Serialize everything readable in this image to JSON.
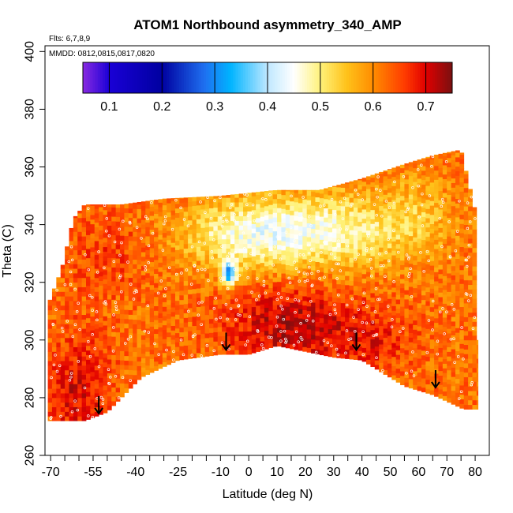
{
  "chart_data": {
    "type": "heatmap",
    "title": "ATOM1 Northbound asymmetry_340_AMP",
    "annotations": {
      "flights": "Flts: 6,7,8,9",
      "dates": "MMDD: 0812,0815,0817,0820"
    },
    "xlabel": "Latitude (deg N)",
    "ylabel": "Theta (C)",
    "xlim": [
      -72,
      85
    ],
    "ylim": [
      260,
      402
    ],
    "x_ticks": [
      -70,
      -55,
      -40,
      -25,
      -10,
      0,
      10,
      20,
      30,
      40,
      50,
      60,
      70,
      80
    ],
    "x_tick_labels": [
      "-70",
      "-55",
      "-40",
      "-25",
      "-10",
      "0",
      "10",
      "20",
      "30",
      "40",
      "50",
      "60",
      "70",
      "80"
    ],
    "x_minor_ticks": [
      -65,
      -60,
      -50,
      -45,
      -35,
      -30,
      -20,
      -15,
      -5,
      5,
      15,
      25,
      35,
      45,
      55,
      65,
      75
    ],
    "y_ticks": [
      260,
      280,
      300,
      320,
      340,
      360,
      380,
      400
    ],
    "y_tick_labels": [
      "260",
      "280",
      "300",
      "320",
      "340",
      "360",
      "380",
      "400"
    ],
    "colorbar": {
      "range": [
        0.05,
        0.75
      ],
      "ticks": [
        0.1,
        0.2,
        0.3,
        0.4,
        0.5,
        0.6,
        0.7
      ],
      "tick_labels": [
        "0.1",
        "0.2",
        "0.3",
        "0.4",
        "0.5",
        "0.6",
        "0.7"
      ],
      "stops": [
        {
          "v": 0.05,
          "c": "#8a2be2"
        },
        {
          "v": 0.1,
          "c": "#1a00d6"
        },
        {
          "v": 0.2,
          "c": "#0000a0"
        },
        {
          "v": 0.28,
          "c": "#1e6ff0"
        },
        {
          "v": 0.33,
          "c": "#00b4ff"
        },
        {
          "v": 0.4,
          "c": "#bfe8ff"
        },
        {
          "v": 0.45,
          "c": "#ffffff"
        },
        {
          "v": 0.5,
          "c": "#fff27a"
        },
        {
          "v": 0.55,
          "c": "#ffc21a"
        },
        {
          "v": 0.6,
          "c": "#ff8c00"
        },
        {
          "v": 0.66,
          "c": "#ff3b00"
        },
        {
          "v": 0.7,
          "c": "#e00000"
        },
        {
          "v": 0.75,
          "c": "#7a1010"
        }
      ]
    },
    "domain": {
      "top": [
        [
          -71,
          312
        ],
        [
          -66,
          325
        ],
        [
          -62,
          342
        ],
        [
          -58,
          347
        ],
        [
          -45,
          347
        ],
        [
          -30,
          349
        ],
        [
          -10,
          350
        ],
        [
          10,
          352
        ],
        [
          25,
          352
        ],
        [
          40,
          356
        ],
        [
          55,
          361
        ],
        [
          65,
          364
        ],
        [
          75,
          366
        ],
        [
          80,
          345
        ],
        [
          81,
          300
        ]
      ],
      "bottom": [
        [
          -71,
          272
        ],
        [
          -58,
          272
        ],
        [
          -50,
          275
        ],
        [
          -38,
          287
        ],
        [
          -25,
          293
        ],
        [
          -10,
          295
        ],
        [
          0,
          295
        ],
        [
          10,
          298
        ],
        [
          20,
          296
        ],
        [
          30,
          294
        ],
        [
          40,
          293
        ],
        [
          55,
          284
        ],
        [
          65,
          281
        ],
        [
          76,
          276
        ],
        [
          81,
          276
        ]
      ]
    },
    "field_features": [
      {
        "type": "low",
        "lat": -7,
        "theta": 323,
        "sigma_lat": 2,
        "sigma_theta": 3,
        "amp": -0.28
      },
      {
        "type": "low",
        "lat": 25,
        "theta": 338,
        "sigma_lat": 22,
        "sigma_theta": 9,
        "amp": -0.16
      },
      {
        "type": "low",
        "lat": -5,
        "theta": 336,
        "sigma_lat": 14,
        "sigma_theta": 8,
        "amp": -0.1
      },
      {
        "type": "low",
        "lat": 60,
        "theta": 345,
        "sigma_lat": 8,
        "sigma_theta": 10,
        "amp": -0.05
      },
      {
        "type": "high",
        "lat": 15,
        "theta": 305,
        "sigma_lat": 16,
        "sigma_theta": 10,
        "amp": 0.1
      },
      {
        "type": "high",
        "lat": -60,
        "theta": 282,
        "sigma_lat": 8,
        "sigma_theta": 14,
        "amp": 0.08
      },
      {
        "type": "high",
        "lat": -50,
        "theta": 330,
        "sigma_lat": 10,
        "sigma_theta": 10,
        "amp": 0.04
      },
      {
        "type": "high",
        "lat": 45,
        "theta": 300,
        "sigma_lat": 10,
        "sigma_theta": 8,
        "amp": 0.05
      }
    ],
    "base_value": 0.62,
    "tropopause_arrows": [
      {
        "lat": -53,
        "theta": 277
      },
      {
        "lat": -8,
        "theta": 299
      },
      {
        "lat": 38,
        "theta": 299
      },
      {
        "lat": 66,
        "theta": 286
      }
    ]
  }
}
